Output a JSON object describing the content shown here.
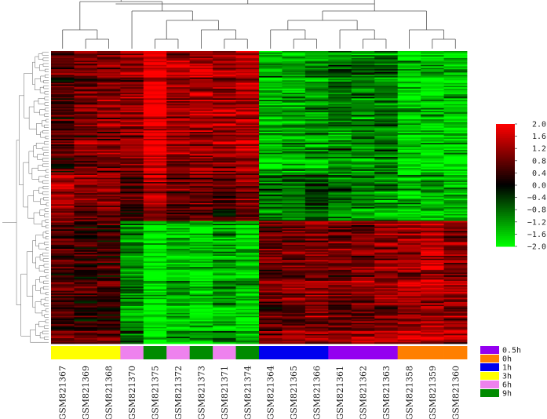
{
  "chart_data": {
    "type": "heatmap",
    "title": "",
    "samples": [
      {
        "id": "GSM821367",
        "group": "3h"
      },
      {
        "id": "GSM821369",
        "group": "3h"
      },
      {
        "id": "GSM821368",
        "group": "3h"
      },
      {
        "id": "GSM821370",
        "group": "6h"
      },
      {
        "id": "GSM821375",
        "group": "9h"
      },
      {
        "id": "GSM821372",
        "group": "6h"
      },
      {
        "id": "GSM821373",
        "group": "9h"
      },
      {
        "id": "GSM821371",
        "group": "6h"
      },
      {
        "id": "GSM821374",
        "group": "9h"
      },
      {
        "id": "GSM821364",
        "group": "1h"
      },
      {
        "id": "GSM821365",
        "group": "1h"
      },
      {
        "id": "GSM821366",
        "group": "1h"
      },
      {
        "id": "GSM821361",
        "group": "0.5h"
      },
      {
        "id": "GSM821362",
        "group": "0.5h"
      },
      {
        "id": "GSM821363",
        "group": "0.5h"
      },
      {
        "id": "GSM821358",
        "group": "0h"
      },
      {
        "id": "GSM821359",
        "group": "0h"
      },
      {
        "id": "GSM821360",
        "group": "0h"
      }
    ],
    "color_scale": {
      "min": -2.0,
      "max": 2.0,
      "low_color": "#00ff00",
      "mid_color": "#000000",
      "high_color": "#ff0000",
      "ticks": [
        "2.0",
        "1.6",
        "1.2",
        "0.8",
        "0.4",
        "0.0",
        "−0.4",
        "−0.8",
        "−1.2",
        "−1.6",
        "−2.0"
      ]
    },
    "groups": [
      {
        "name": "0.5h",
        "color": "#9400f0"
      },
      {
        "name": "0h",
        "color": "#ff7f00"
      },
      {
        "name": "1h",
        "color": "#0000ee"
      },
      {
        "name": "3h",
        "color": "#ffff00"
      },
      {
        "name": "6h",
        "color": "#ee82ee"
      },
      {
        "name": "9h",
        "color": "#008b00"
      }
    ],
    "gene_clusters": [
      {
        "fraction": 0.42,
        "profile": [
          0.6,
          0.9,
          1.0,
          1.1,
          1.9,
          1.2,
          1.3,
          1.2,
          1.4,
          -1.5,
          -1.4,
          -1.2,
          -1.0,
          -1.0,
          -0.9,
          -1.8,
          -1.7,
          -1.8
        ]
      },
      {
        "fraction": 0.16,
        "profile": [
          1.2,
          0.9,
          1.1,
          0.5,
          1.3,
          0.7,
          0.8,
          0.5,
          0.9,
          -0.9,
          -0.8,
          -0.4,
          -0.9,
          -1.0,
          -1.1,
          -1.4,
          -1.3,
          -1.5
        ]
      },
      {
        "fraction": 0.42,
        "profile": [
          0.6,
          0.4,
          0.5,
          -1.0,
          -1.9,
          -1.4,
          -1.6,
          -1.3,
          -1.5,
          0.8,
          0.9,
          1.0,
          0.9,
          1.0,
          1.1,
          1.3,
          1.4,
          1.1
        ]
      }
    ]
  }
}
